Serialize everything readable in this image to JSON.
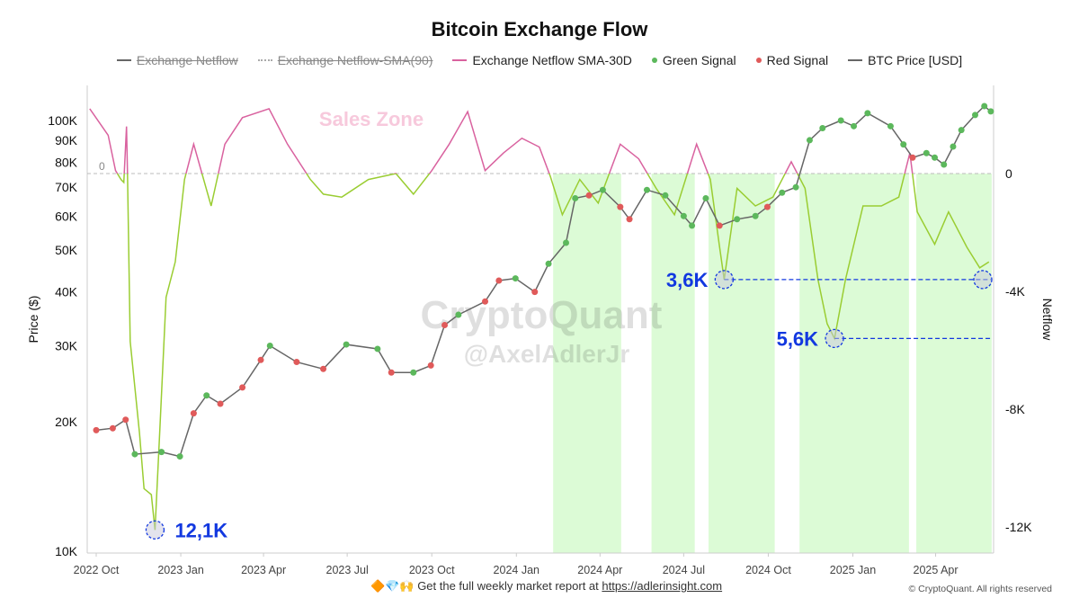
{
  "chart_data": {
    "type": "line",
    "title": "Bitcoin Exchange Flow",
    "legend": [
      {
        "label": "Exchange Netflow",
        "color": "#666666",
        "hidden": true,
        "style": "solid"
      },
      {
        "label": "Exchange Netflow-SMA(90)",
        "color": "#aaaaaa",
        "hidden": true,
        "style": "dotted"
      },
      {
        "label": "Exchange Netflow SMA-30D",
        "color": "#d9629f",
        "hidden": false,
        "style": "solid"
      },
      {
        "label": "Green Signal",
        "color": "#5cb85c",
        "hidden": false,
        "style": "dot"
      },
      {
        "label": "Red Signal",
        "color": "#e05a5a",
        "hidden": false,
        "style": "dot"
      },
      {
        "label": "BTC Price [USD]",
        "color": "#666666",
        "hidden": false,
        "style": "solid"
      }
    ],
    "legend_position": "top",
    "ylabel_left": "Price ($)",
    "ylabel_right": "Netflow",
    "y_left_scale": "log",
    "y_left_range": [
      10000,
      125000
    ],
    "y_left_ticks": [
      "10K",
      "20K",
      "30K",
      "40K",
      "50K",
      "60K",
      "70K",
      "80K",
      "90K",
      "100K"
    ],
    "y_left_tick_values": [
      10000,
      20000,
      30000,
      40000,
      50000,
      60000,
      70000,
      80000,
      90000,
      100000
    ],
    "y_right_range": [
      -13000,
      3000
    ],
    "y_right_ticks": [
      "0",
      "-4K",
      "-8K",
      "-12K"
    ],
    "y_right_tick_values": [
      0,
      -4000,
      -8000,
      -12000
    ],
    "x_ticks": [
      "2022 Oct",
      "2023 Jan",
      "2023 Apr",
      "2023 Jul",
      "2023 Oct",
      "2024 Jan",
      "2024 Apr",
      "2024 Jul",
      "2024 Oct",
      "2025 Jan",
      "2025 Apr"
    ],
    "x_tick_dates": [
      "2022-10-01",
      "2023-01-01",
      "2023-04-01",
      "2023-07-01",
      "2023-10-01",
      "2024-01-01",
      "2024-04-01",
      "2024-07-01",
      "2024-10-01",
      "2025-01-01",
      "2025-04-01"
    ],
    "x_range": [
      "2022-09-22",
      "2025-06-05"
    ],
    "grid": false,
    "zero_line_label": "0",
    "zone_label": "Sales Zone",
    "colors": {
      "positive": "#d9629f",
      "negative": "#9acd32",
      "zone": "#dcfbd6",
      "price": "#666666",
      "green": "#5cb85c",
      "red": "#e05a5a",
      "annotation": "#1238e0"
    },
    "btc_price": {
      "dates": [
        "2022-10-01",
        "2022-10-19",
        "2022-11-02",
        "2022-11-12",
        "2022-12-11",
        "2022-12-31",
        "2023-01-15",
        "2023-01-29",
        "2023-02-13",
        "2023-03-09",
        "2023-03-29",
        "2023-04-08",
        "2023-05-07",
        "2023-06-05",
        "2023-06-30",
        "2023-08-03",
        "2023-08-18",
        "2023-09-11",
        "2023-09-30",
        "2023-10-15",
        "2023-10-30",
        "2023-11-28",
        "2023-12-13",
        "2023-12-31",
        "2024-01-21",
        "2024-02-05",
        "2024-02-24",
        "2024-03-05",
        "2024-03-20",
        "2024-04-04",
        "2024-04-23",
        "2024-05-03",
        "2024-05-22",
        "2024-06-11",
        "2024-07-01",
        "2024-07-10",
        "2024-07-25",
        "2024-08-09",
        "2024-08-28",
        "2024-09-17",
        "2024-09-30",
        "2024-10-16",
        "2024-10-31",
        "2024-11-15",
        "2024-11-29",
        "2024-12-19",
        "2025-01-02",
        "2025-01-17",
        "2025-02-11",
        "2025-02-25",
        "2025-03-07",
        "2025-03-22",
        "2025-03-31",
        "2025-04-10",
        "2025-04-20",
        "2025-04-29",
        "2025-05-14",
        "2025-05-24",
        "2025-05-31"
      ],
      "values": [
        19100,
        19300,
        20200,
        16800,
        17000,
        16600,
        20900,
        23000,
        22000,
        24000,
        27800,
        30000,
        27500,
        26500,
        30200,
        29500,
        26000,
        26000,
        27000,
        33500,
        35400,
        38000,
        42500,
        43000,
        40000,
        46500,
        52000,
        66000,
        67000,
        69000,
        63000,
        59000,
        69000,
        67000,
        60000,
        57000,
        66000,
        57000,
        59000,
        60000,
        63000,
        68000,
        70000,
        90000,
        96000,
        100000,
        97000,
        104000,
        97000,
        88000,
        82000,
        84000,
        82000,
        79000,
        87000,
        95000,
        103000,
        108000,
        105000
      ],
      "signals": [
        "R",
        "R",
        "R",
        "G",
        "G",
        "G",
        "R",
        "G",
        "R",
        "R",
        "R",
        "G",
        "R",
        "R",
        "G",
        "G",
        "R",
        "G",
        "R",
        "R",
        "G",
        "R",
        "R",
        "G",
        "R",
        "G",
        "G",
        "G",
        "R",
        "G",
        "R",
        "R",
        "G",
        "G",
        "G",
        "G",
        "G",
        "R",
        "G",
        "G",
        "R",
        "G",
        "G",
        "G",
        "G",
        "G",
        "G",
        "G",
        "G",
        "G",
        "R",
        "G",
        "G",
        "G",
        "G",
        "G",
        "G",
        "G",
        "G"
      ]
    },
    "netflow_sma30": {
      "dates": [
        "2022-09-24",
        "2022-10-14",
        "2022-10-22",
        "2022-10-28",
        "2022-10-31",
        "2022-11-03",
        "2022-11-04",
        "2022-11-07",
        "2022-11-17",
        "2022-11-22",
        "2022-11-30",
        "2022-12-04",
        "2022-12-09",
        "2022-12-16",
        "2022-12-26",
        "2023-01-05",
        "2023-01-15",
        "2023-02-03",
        "2023-02-18",
        "2023-03-09",
        "2023-04-07",
        "2023-04-27",
        "2023-05-22",
        "2023-06-05",
        "2023-06-25",
        "2023-07-24",
        "2023-08-23",
        "2023-09-11",
        "2023-10-01",
        "2023-10-20",
        "2023-11-09",
        "2023-11-28",
        "2023-12-18",
        "2024-01-07",
        "2024-01-26",
        "2024-02-07",
        "2024-02-20",
        "2024-03-10",
        "2024-03-30",
        "2024-04-23",
        "2024-05-13",
        "2024-06-01",
        "2024-06-21",
        "2024-07-15",
        "2024-07-30",
        "2024-08-09",
        "2024-08-14",
        "2024-08-28",
        "2024-09-17",
        "2024-10-06",
        "2024-10-26",
        "2024-11-10",
        "2024-11-24",
        "2024-12-04",
        "2024-12-12",
        "2024-12-24",
        "2025-01-12",
        "2025-02-01",
        "2025-02-20",
        "2025-03-04",
        "2025-03-12",
        "2025-03-31",
        "2025-04-15",
        "2025-05-05",
        "2025-05-19",
        "2025-05-29"
      ],
      "values": [
        2200,
        1300,
        100,
        -200,
        -300,
        1600,
        0,
        -5700,
        -8800,
        -10700,
        -10900,
        -12100,
        -8800,
        -4200,
        -3000,
        -200,
        1000,
        -1100,
        1000,
        1900,
        2200,
        1000,
        -200,
        -700,
        -800,
        -200,
        0,
        -700,
        100,
        1000,
        2100,
        100,
        700,
        1200,
        900,
        -100,
        -1400,
        -200,
        -1000,
        1000,
        500,
        -500,
        -1400,
        1000,
        -200,
        -2500,
        -3600,
        -500,
        -1100,
        -800,
        400,
        -500,
        -3600,
        -5100,
        -5600,
        -3600,
        -1100,
        -1100,
        -800,
        700,
        -1300,
        -2400,
        -1300,
        -2500,
        -3200,
        -3000
      ]
    },
    "green_zones": [
      [
        "2024-02-10",
        "2024-04-24"
      ],
      [
        "2024-05-27",
        "2024-07-13"
      ],
      [
        "2024-07-28",
        "2024-10-08"
      ],
      [
        "2024-11-04",
        "2025-03-03"
      ],
      [
        "2025-03-11",
        "2025-06-01"
      ]
    ],
    "annotations": [
      {
        "label": "12,1K",
        "date": "2022-12-04",
        "value": -12100,
        "label_side": "right",
        "extend_line": false
      },
      {
        "label": "3,6K",
        "date": "2024-08-14",
        "value": -3600,
        "label_side": "left",
        "extend_line": true
      },
      {
        "label": "5,6K",
        "date": "2024-12-12",
        "value": -5600,
        "label_side": "left",
        "extend_line": true
      }
    ]
  },
  "watermark": {
    "brand": "CryptoQuant",
    "handle": "@AxelAdlerJr"
  },
  "footer": {
    "emoji": "🔶💎🙌",
    "text": "Get the full weekly market report at",
    "link": "https://adlerinsight.com",
    "copyright": "© CryptoQuant. All rights reserved"
  }
}
